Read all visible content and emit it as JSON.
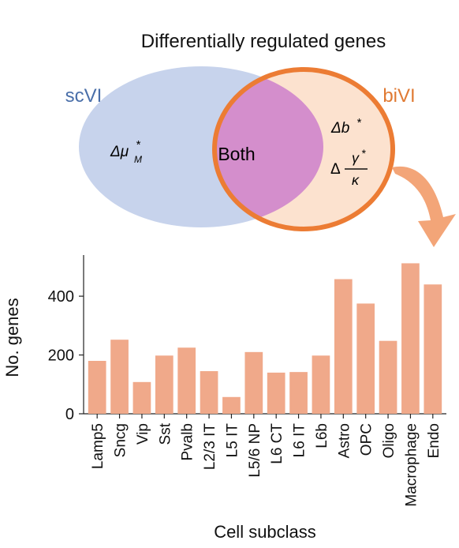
{
  "venn": {
    "title": "Differentially regulated genes",
    "left_label": "scVI",
    "right_label": "biVI",
    "center_label": "Both",
    "left_only_term": {
      "prefix": "Δμ",
      "sup": "*",
      "sub": "M"
    },
    "right_only_terms": {
      "first": {
        "prefix": "Δb",
        "sup": "*"
      },
      "second": {
        "prefix": "Δ",
        "numerator": "γ",
        "num_sup": "*",
        "denominator": "κ"
      }
    },
    "colors": {
      "left_fill": "#c7d3ec",
      "both_fill": "#d48ecc",
      "right_fill": "#fce2cf",
      "right_stroke": "#ec7c34",
      "left_label": "#4a6fa9",
      "right_label": "#e07a33",
      "arrow": "#f3a578"
    }
  },
  "chart_data": {
    "type": "bar",
    "xlabel": "Cell subclass",
    "ylabel": "No. genes",
    "ylim": [
      0,
      540
    ],
    "yticks": [
      0,
      200,
      400
    ],
    "categories": [
      "Lamp5",
      "Sncg",
      "Vip",
      "Sst",
      "Pvalb",
      "L2/3 IT",
      "L5 IT",
      "L5/6 NP",
      "L6 CT",
      "L6 IT",
      "L6b",
      "Astro",
      "OPC",
      "Oligo",
      "Macrophage",
      "Endo"
    ],
    "values": [
      180,
      252,
      108,
      198,
      225,
      145,
      57,
      210,
      140,
      142,
      198,
      458,
      375,
      248,
      512,
      440
    ],
    "bar_color": "#f0a98a",
    "grid": false
  }
}
